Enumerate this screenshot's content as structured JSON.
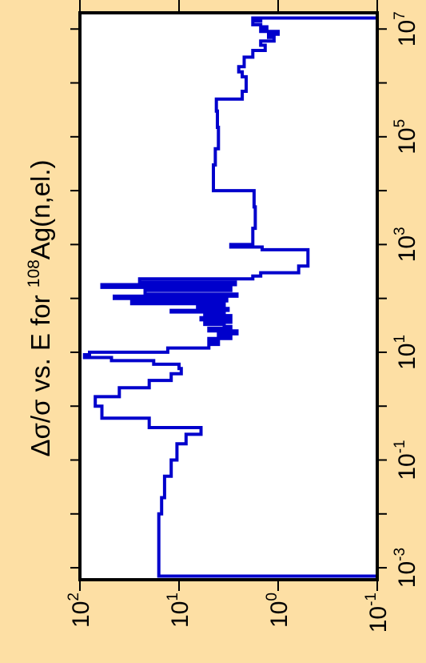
{
  "colors": {
    "background": "#FDDFA4",
    "plot_background": "#FFFFFF",
    "series": "#0000CC",
    "axis": "#000000"
  },
  "chart_data": {
    "type": "line",
    "orientation": "rotated-90-ccw",
    "title": {
      "prefix": "Δσ/σ vs. E for ",
      "sup": "108",
      "suffix": "Ag(n,el.)"
    },
    "x_axis": {
      "scale": "log",
      "range": [
        0.0006,
        20000000
      ],
      "major_ticks": [
        {
          "base": "10",
          "exp": "-3",
          "value": 0.001
        },
        {
          "base": "10",
          "exp": "-1",
          "value": 0.1
        },
        {
          "base": "10",
          "exp": "1",
          "value": 10
        },
        {
          "base": "10",
          "exp": "3",
          "value": 1000
        },
        {
          "base": "10",
          "exp": "5",
          "value": 100000
        },
        {
          "base": "10",
          "exp": "7",
          "value": 10000000
        }
      ],
      "minor_ticks": [
        0.01,
        1,
        100,
        10000,
        1000000
      ]
    },
    "y_axis": {
      "scale": "log",
      "range": [
        0.1,
        100
      ],
      "reversed": true,
      "ticks": [
        {
          "base": "10",
          "exp": "2",
          "value": 100
        },
        {
          "base": "10",
          "exp": "1",
          "value": 10
        },
        {
          "base": "10",
          "exp": "0",
          "value": 1
        },
        {
          "base": "10",
          "exp": "-1",
          "value": 0.1
        }
      ]
    },
    "series": [
      {
        "points": [
          [
            0.0007,
            0.1
          ],
          [
            0.0007,
            16
          ],
          [
            0.01,
            15
          ],
          [
            0.02,
            14
          ],
          [
            0.05,
            12
          ],
          [
            0.1,
            10.5
          ],
          [
            0.2,
            8.5
          ],
          [
            0.3,
            6
          ],
          [
            0.4,
            20
          ],
          [
            0.6,
            60
          ],
          [
            1.0,
            70
          ],
          [
            1.5,
            40
          ],
          [
            2.2,
            20
          ],
          [
            3,
            12
          ],
          [
            4,
            9.5
          ],
          [
            5,
            10
          ],
          [
            6,
            18
          ],
          [
            7,
            48
          ],
          [
            8,
            90
          ],
          [
            9,
            80
          ],
          [
            10,
            13
          ],
          [
            12,
            5
          ],
          [
            14,
            4
          ],
          [
            16,
            5
          ],
          [
            18,
            3
          ],
          [
            20,
            4
          ],
          [
            22,
            2.6
          ],
          [
            25,
            5
          ],
          [
            28,
            3
          ],
          [
            30,
            3.5
          ],
          [
            33,
            5.5
          ],
          [
            36,
            3
          ],
          [
            40,
            6
          ],
          [
            44,
            3
          ],
          [
            48,
            5.5
          ],
          [
            52,
            3.5
          ],
          [
            56,
            12
          ],
          [
            60,
            3.2
          ],
          [
            65,
            6.5
          ],
          [
            70,
            3.5
          ],
          [
            80,
            30
          ],
          [
            90,
            3.3
          ],
          [
            100,
            45
          ],
          [
            110,
            2.6
          ],
          [
            120,
            22
          ],
          [
            140,
            3
          ],
          [
            160,
            60
          ],
          [
            180,
            2.7
          ],
          [
            200,
            25
          ],
          [
            230,
            1.8
          ],
          [
            260,
            1.5
          ],
          [
            300,
            0.62
          ],
          [
            400,
            0.5
          ],
          [
            500,
            0.5
          ],
          [
            800,
            1.45
          ],
          [
            900,
            3
          ],
          [
            1000,
            1.8
          ],
          [
            2000,
            1.7
          ],
          [
            5000,
            1.75
          ],
          [
            8000,
            1.75
          ],
          [
            10000,
            4.5
          ],
          [
            30000,
            4.3
          ],
          [
            60000,
            4.0
          ],
          [
            100000,
            4.0
          ],
          [
            150000,
            4.1
          ],
          [
            300000,
            4.2
          ],
          [
            500000,
            2.3
          ],
          [
            700000,
            2.1
          ],
          [
            1000000,
            2.1
          ],
          [
            1300000,
            2.3
          ],
          [
            1600000,
            2.5
          ],
          [
            2000000,
            2.2
          ],
          [
            3000000,
            1.8
          ],
          [
            4000000,
            1.35
          ],
          [
            5000000,
            1.5
          ],
          [
            6000000,
            1.1
          ],
          [
            7000000,
            1.25
          ],
          [
            8000000,
            1.0
          ],
          [
            9000000,
            1.5
          ],
          [
            10000000,
            1.3
          ],
          [
            11000000,
            1.5
          ],
          [
            12000000,
            1.8
          ],
          [
            14000000,
            1.5
          ],
          [
            15000000,
            1.8
          ],
          [
            16000000,
            0.1
          ]
        ]
      }
    ]
  }
}
